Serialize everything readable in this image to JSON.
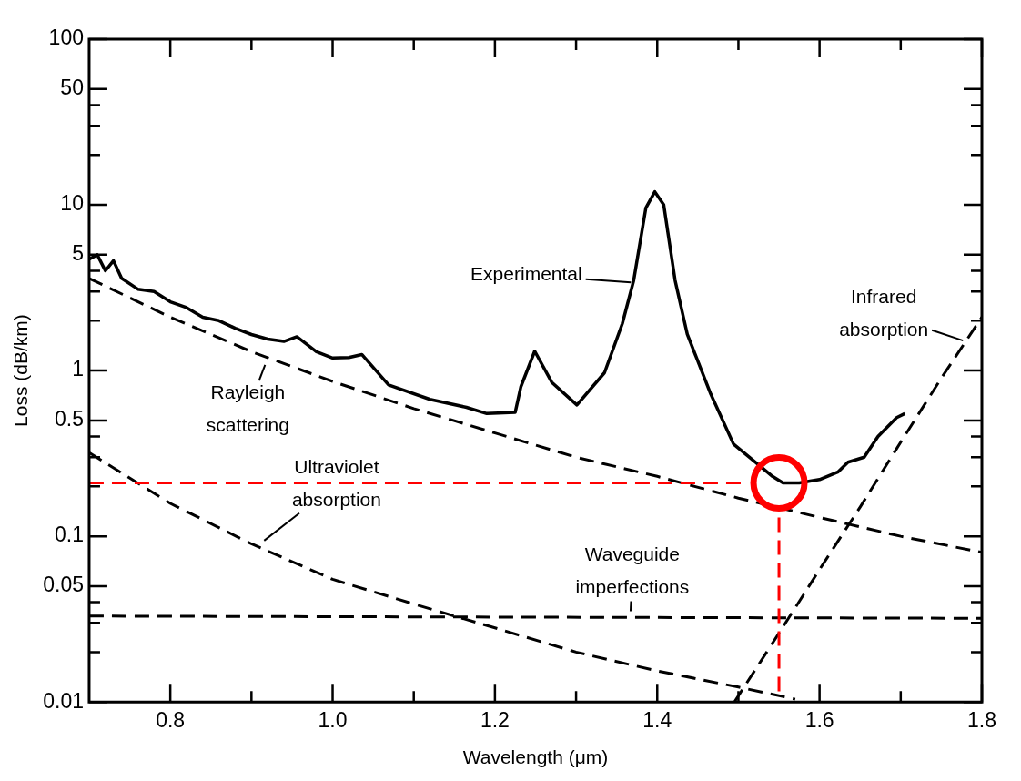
{
  "chart_data": {
    "type": "line",
    "xlabel": "Wavelength (μm)",
    "ylabel": "Loss (dB/km)",
    "log": "y",
    "grid": false,
    "legend": false,
    "marker": "none",
    "xlim": [
      0.7,
      1.8
    ],
    "xticks": [
      {
        "value": 0.8,
        "label": "0.8"
      },
      {
        "value": 0.9,
        "label": null
      },
      {
        "value": 1.0,
        "label": "1.0"
      },
      {
        "value": 1.1,
        "label": null
      },
      {
        "value": 1.2,
        "label": "1.2"
      },
      {
        "value": 1.3,
        "label": null
      },
      {
        "value": 1.4,
        "label": "1.4"
      },
      {
        "value": 1.5,
        "label": null
      },
      {
        "value": 1.6,
        "label": "1.6"
      },
      {
        "value": 1.7,
        "label": null
      },
      {
        "value": 1.8,
        "label": "1.8"
      }
    ],
    "ylim": [
      0.01,
      100
    ],
    "yticks": [
      0.01,
      {
        "value": 0.02,
        "label": null
      },
      {
        "value": 0.03,
        "label": null
      },
      {
        "value": 0.04,
        "label": null
      },
      0.05,
      0.1,
      {
        "value": 0.2,
        "label": null
      },
      {
        "value": 0.3,
        "label": null
      },
      {
        "value": 0.4,
        "label": null
      },
      0.5,
      1,
      {
        "value": 2,
        "label": null
      },
      {
        "value": 3,
        "label": null
      },
      {
        "value": 4,
        "label": null
      },
      5,
      10,
      {
        "value": 20,
        "label": null
      },
      {
        "value": 30,
        "label": null
      },
      {
        "value": 40,
        "label": null
      },
      50,
      100
    ],
    "series": [
      {
        "color": "#000000",
        "line_style": "solid",
        "x": [
          0.7,
          0.71,
          0.72,
          0.73,
          0.74,
          0.76,
          0.78,
          0.8,
          0.82,
          0.84,
          0.86,
          0.88,
          0.9,
          0.92,
          0.94,
          0.956,
          0.98,
          1.0,
          1.02,
          1.036,
          1.069,
          1.12,
          1.165,
          1.19,
          1.225,
          1.232,
          1.249,
          1.27,
          1.301,
          1.335,
          1.357,
          1.371,
          1.386,
          1.397,
          1.408,
          1.422,
          1.437,
          1.466,
          1.494,
          1.542,
          1.555,
          1.575,
          1.6,
          1.623,
          1.635,
          1.655,
          1.672,
          1.695,
          1.705
        ],
        "values": [
          4.7,
          5.0,
          4.0,
          4.6,
          3.6,
          3.1,
          3.0,
          2.6,
          2.4,
          2.1,
          2.0,
          1.8,
          1.65,
          1.55,
          1.5,
          1.6,
          1.3,
          1.19,
          1.2,
          1.25,
          0.82,
          0.67,
          0.6,
          0.55,
          0.56,
          0.8,
          1.31,
          0.85,
          0.62,
          0.97,
          1.92,
          3.5,
          9.6,
          12,
          10,
          3.5,
          1.66,
          0.72,
          0.36,
          0.23,
          0.21,
          0.21,
          0.22,
          0.245,
          0.28,
          0.3,
          0.4,
          0.52,
          0.55
        ]
      },
      {
        "color": "#000000",
        "line_style": "dashed",
        "x": [
          0.7,
          0.8,
          0.9,
          1.0,
          1.1,
          1.2,
          1.3,
          1.4,
          1.5,
          1.6,
          1.7,
          1.8
        ],
        "values": [
          3.6,
          2.1,
          1.3,
          0.86,
          0.59,
          0.42,
          0.3,
          0.23,
          0.17,
          0.13,
          0.1,
          0.08
        ]
      },
      {
        "color": "#000000",
        "line_style": "dashed",
        "x": [
          0.7,
          0.8,
          0.9,
          1.0,
          1.1,
          1.2,
          1.3,
          1.4,
          1.5,
          1.57
        ],
        "values": [
          0.32,
          0.158,
          0.09,
          0.055,
          0.039,
          0.028,
          0.02,
          0.0154,
          0.0123,
          0.0104
        ]
      },
      {
        "color": "#000000",
        "line_style": "dashed",
        "x": [
          0.7,
          1.8
        ],
        "values": [
          0.033,
          0.032
        ]
      },
      {
        "color": "#000000",
        "line_style": "dashed",
        "x": [
          1.495,
          1.55,
          1.6,
          1.65,
          1.7,
          1.75,
          1.8
        ],
        "values": [
          0.01,
          0.026,
          0.063,
          0.15,
          0.37,
          0.9,
          2.1
        ]
      },
      {
        "color": "#ff0000",
        "line_style": "dashed",
        "x": [
          0.7,
          1.51
        ],
        "values": [
          0.21,
          0.21
        ]
      },
      {
        "color": "#ff0000",
        "line_style": "dashed",
        "x": [
          1.55,
          1.55
        ],
        "values": [
          0.13,
          0.0115
        ]
      },
      {
        "type": "scatter",
        "marker": "circle",
        "color": "#ff0000",
        "x": [
          1.55
        ],
        "values": [
          0.21
        ]
      }
    ],
    "annotations": [
      {
        "text": "Experimental",
        "x": 1.371,
        "y": 3.4
      },
      {
        "text": "Rayleigh scattering",
        "x": 0.918,
        "y": 1.12
      },
      {
        "text": "Ultraviolet absorption",
        "x": 0.913,
        "y": 0.092
      },
      {
        "text": "Waveguide imperfections",
        "x": 1.367,
        "y": 0.034
      },
      {
        "text": "Infrared absorption",
        "x": 1.78,
        "y": 1.5
      }
    ]
  }
}
